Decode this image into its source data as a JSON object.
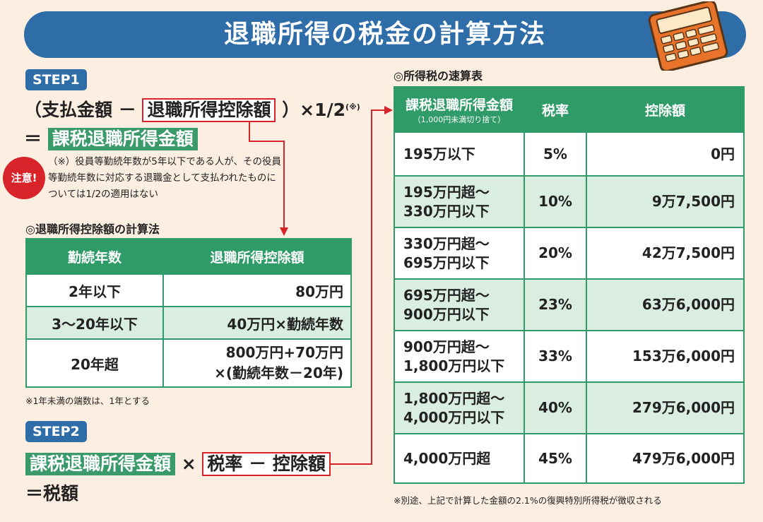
{
  "title": "退職所得の税金の計算方法",
  "step1": {
    "badge": "STEP1",
    "open": "（支払金額 －",
    "box": "退職所得控除額",
    "close": "）×1/2",
    "sup": "(※)",
    "eq": "＝",
    "result": "課税退職所得金額"
  },
  "note": {
    "badge": "注意!",
    "text": "（※）役員等勤続年数が5年以下である人が、その役員等勤続年数に対応する退職金として支払われたものについては1/2の適用はない"
  },
  "deduction": {
    "section_title": "◎退職所得控除額の計算法",
    "headers": [
      "勤続年数",
      "退職所得控除額"
    ],
    "rows": [
      {
        "years": "2年以下",
        "amount": "80万円"
      },
      {
        "years": "3～20年以下",
        "amount": "40万円×勤続年数"
      },
      {
        "years": "20年超",
        "amount_line1": "800万円+70万円",
        "amount_line2": "×(勤続年数－20年)"
      }
    ],
    "footnote": "※1年未満の端数は、1年とする"
  },
  "step2": {
    "badge": "STEP2",
    "green": "課税退職所得金額",
    "times": "×",
    "box": "税率 － 控除額",
    "result": "＝税額"
  },
  "quick": {
    "section_title": "◎所得税の速算表",
    "header_income": "課税退職所得金額",
    "header_income_sub": "（1,000円未満切り捨て）",
    "header_rate": "税率",
    "header_deduct": "控除額",
    "rows": [
      {
        "income_l1": "195万以下",
        "income_l2": "",
        "rate": "5%",
        "deduct": "0円"
      },
      {
        "income_l1": "195万円超～",
        "income_l2": "330万円以下",
        "rate": "10%",
        "deduct": "9万7,500円"
      },
      {
        "income_l1": "330万円超～",
        "income_l2": "695万円以下",
        "rate": "20%",
        "deduct": "42万7,500円"
      },
      {
        "income_l1": "695万円超～",
        "income_l2": "900万円以下",
        "rate": "23%",
        "deduct": "63万6,000円"
      },
      {
        "income_l1": "900万円超～",
        "income_l2": "1,800万円以下",
        "rate": "33%",
        "deduct": "153万6,000円"
      },
      {
        "income_l1": "1,800万円超～",
        "income_l2": "4,000万円以下",
        "rate": "40%",
        "deduct": "279万6,000円"
      },
      {
        "income_l1": "4,000万円超",
        "income_l2": "",
        "rate": "45%",
        "deduct": "479万6,000円"
      }
    ],
    "footnote": "※別途、上記で計算した金額の2.1%の復興特別所得税が徴収される"
  },
  "colors": {
    "title_blue": "#2e6da8",
    "green": "#2f9b68",
    "red": "#d8232a",
    "bg": "#fdeee2",
    "alt_row": "#d9eee0"
  },
  "icons": {
    "calculator": "calculator-icon"
  }
}
